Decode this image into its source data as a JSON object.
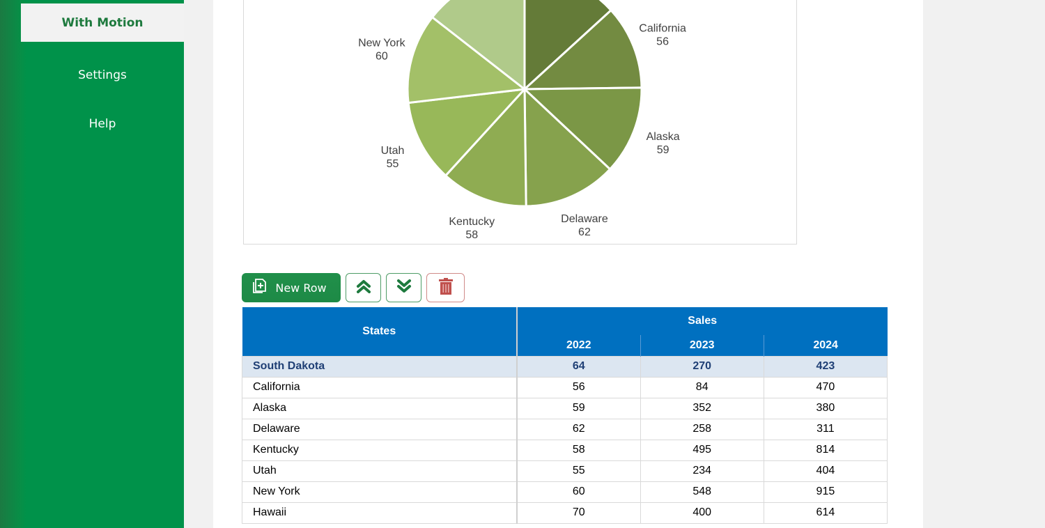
{
  "sidebar": {
    "items": [
      {
        "label": "With Motion",
        "active": true
      },
      {
        "label": "Settings",
        "active": false
      },
      {
        "label": "Help",
        "active": false
      }
    ]
  },
  "colors": {
    "sidebar_green": "#00924a",
    "active_text": "#1e7a3e",
    "header_blue": "#0070c0",
    "highlight_row_bg": "#dce6f1",
    "highlight_row_text": "#1f3f75",
    "delete_red": "#c0504d"
  },
  "toolbar": {
    "new_row_label": "New Row",
    "new_row_icon": "add-document-icon",
    "move_up_icon": "double-chevron-up-icon",
    "move_down_icon": "double-chevron-down-icon",
    "delete_icon": "trash-icon"
  },
  "table": {
    "header": {
      "states": "States",
      "sales": "Sales",
      "years": [
        "2022",
        "2023",
        "2024"
      ]
    },
    "rows": [
      {
        "state": "South Dakota",
        "y2022": "64",
        "y2023": "270",
        "y2024": "423",
        "highlight": true
      },
      {
        "state": "California",
        "y2022": "56",
        "y2023": "84",
        "y2024": "470"
      },
      {
        "state": "Alaska",
        "y2022": "59",
        "y2023": "352",
        "y2024": "380"
      },
      {
        "state": "Delaware",
        "y2022": "62",
        "y2023": "258",
        "y2024": "311"
      },
      {
        "state": "Kentucky",
        "y2022": "58",
        "y2023": "495",
        "y2024": "814"
      },
      {
        "state": "Utah",
        "y2022": "55",
        "y2023": "234",
        "y2024": "404"
      },
      {
        "state": "New York",
        "y2022": "60",
        "y2023": "548",
        "y2024": "915"
      },
      {
        "state": "Hawaii",
        "y2022": "70",
        "y2023": "400",
        "y2024": "614"
      }
    ]
  },
  "chart_data": {
    "type": "pie",
    "title": "",
    "series_name": "2022",
    "categories": [
      "South Dakota",
      "California",
      "Alaska",
      "Delaware",
      "Kentucky",
      "Utah",
      "New York",
      "Hawaii"
    ],
    "values": [
      64,
      56,
      59,
      62,
      58,
      55,
      60,
      70
    ],
    "colors": [
      "#647b38",
      "#738b41",
      "#7b9746",
      "#86a24d",
      "#8fac52",
      "#98b859",
      "#a3c068",
      "#b0ca8a"
    ],
    "visible_labels": [
      {
        "name": "California",
        "value": "56"
      },
      {
        "name": "Alaska",
        "value": "59"
      },
      {
        "name": "Delaware",
        "value": "62"
      },
      {
        "name": "Kentucky",
        "value": "58"
      },
      {
        "name": "Utah",
        "value": "55"
      },
      {
        "name": "New York",
        "value": "60"
      }
    ],
    "legend": "none",
    "start_angle": "12 o'clock, clockwise"
  }
}
